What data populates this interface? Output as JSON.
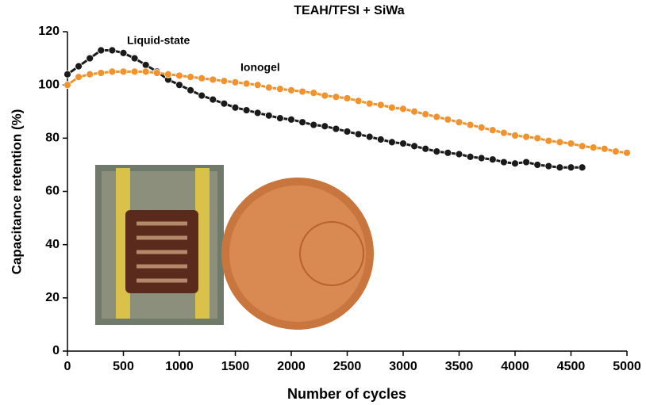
{
  "chart_data": {
    "type": "line",
    "title": "TEAH/TFSI + SiWa",
    "x_label": "Number of cycles",
    "y_label": "Capacitance retention (%)",
    "x": [
      0,
      100,
      200,
      300,
      400,
      500,
      600,
      700,
      800,
      900,
      1000,
      1100,
      1200,
      1300,
      1400,
      1500,
      1600,
      1700,
      1800,
      1900,
      2000,
      2100,
      2200,
      2300,
      2400,
      2500,
      2600,
      2700,
      2800,
      2900,
      3000,
      3100,
      3200,
      3300,
      3400,
      3500,
      3600,
      3700,
      3800,
      3900,
      4000,
      4100,
      4200,
      4300,
      4400,
      4500,
      4600,
      4700,
      4800,
      4900,
      5000
    ],
    "series": [
      {
        "name": "Liquid-state",
        "color": "#1a1a1a",
        "values": [
          104,
          107,
          110,
          113,
          113,
          112,
          110,
          107.5,
          105,
          102,
          100,
          98,
          96,
          94.5,
          93,
          91.5,
          90.5,
          89.5,
          88.5,
          87.5,
          87,
          86,
          85,
          84.5,
          83.5,
          82.5,
          81.5,
          80.5,
          79.5,
          78.5,
          78,
          77,
          76,
          75,
          74.5,
          74,
          73,
          72.5,
          72,
          71,
          70.5,
          71,
          70,
          69.5,
          69,
          69,
          69,
          null,
          null,
          null,
          null
        ]
      },
      {
        "name": "Ionogel",
        "color": "#f0922e",
        "values": [
          100,
          103,
          104,
          104.5,
          105,
          105,
          105,
          105,
          104.5,
          104,
          103.5,
          103,
          102.5,
          102,
          101.5,
          101,
          100.5,
          100,
          99,
          98.5,
          98,
          97.5,
          97,
          96,
          95.5,
          95,
          94,
          93,
          92.5,
          91.5,
          91,
          90,
          89,
          88,
          87,
          86,
          85,
          84,
          83,
          82,
          81,
          80.5,
          80,
          79,
          78.5,
          78,
          77,
          76.5,
          76,
          75,
          74.5
        ]
      }
    ],
    "xlim": [
      0,
      5000
    ],
    "xticks": [
      0,
      500,
      1000,
      1500,
      2000,
      2500,
      3000,
      3500,
      4000,
      4500,
      5000
    ],
    "ylim": [
      0,
      120
    ],
    "yticks": [
      0,
      20,
      40,
      60,
      80,
      100,
      120
    ]
  }
}
